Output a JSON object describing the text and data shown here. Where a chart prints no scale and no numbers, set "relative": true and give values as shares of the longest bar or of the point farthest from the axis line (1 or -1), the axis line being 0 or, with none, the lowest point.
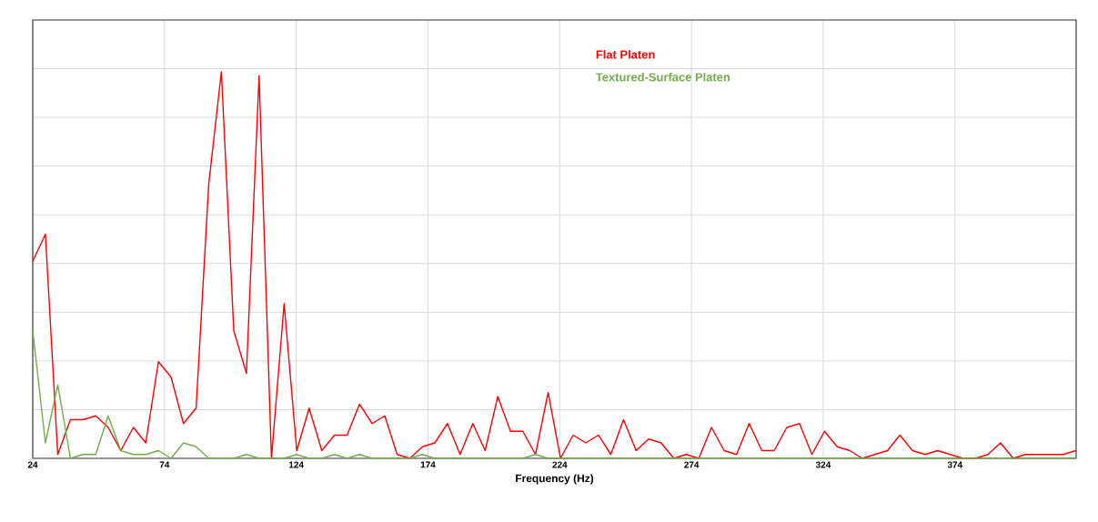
{
  "chart_data": {
    "type": "line",
    "xlabel": "Frequency (Hz)",
    "relative": true,
    "grid": true,
    "legend": "top right",
    "tick_labels": "x",
    "marker": "none",
    "line_style": "solid",
    "xlim": [
      24,
      420
    ],
    "xticks": [
      24,
      74,
      124,
      174,
      224,
      274,
      324,
      374
    ],
    "x": [
      24.0,
      28.8,
      33.5,
      38.3,
      43.1,
      47.9,
      52.6,
      57.4,
      62.2,
      66.9,
      71.7,
      76.5,
      81.2,
      86.0,
      90.8,
      95.6,
      100.3,
      105.1,
      109.9,
      114.6,
      119.4,
      124.2,
      128.9,
      133.7,
      138.5,
      143.3,
      148.0,
      152.8,
      157.6,
      162.3,
      167.1,
      171.9,
      176.6,
      181.4,
      186.2,
      191.0,
      195.7,
      200.5,
      205.3,
      210.0,
      214.8,
      219.6,
      224.3,
      229.1,
      233.9,
      238.7,
      243.4,
      248.2,
      253.0,
      257.7,
      262.5,
      267.3,
      272.0,
      276.8,
      281.6,
      286.4,
      291.1,
      295.9,
      300.7,
      305.4,
      310.2,
      315.0,
      319.7,
      324.5,
      329.3,
      334.1,
      338.8,
      343.6,
      348.4,
      353.1,
      357.9,
      362.7,
      367.4,
      372.2,
      377.0,
      381.8,
      386.5,
      391.3,
      396.1,
      400.8,
      405.6,
      410.4,
      415.1,
      419.9
    ],
    "series": [
      {
        "name": "Flat Platen",
        "color": "#ff0000",
        "values": [
          0.51,
          0.58,
          0.01,
          0.1,
          0.1,
          0.11,
          0.08,
          0.02,
          0.08,
          0.04,
          0.25,
          0.21,
          0.09,
          0.13,
          0.71,
          1.0,
          0.33,
          0.22,
          0.99,
          0.0,
          0.4,
          0.02,
          0.13,
          0.02,
          0.06,
          0.06,
          0.14,
          0.09,
          0.11,
          0.01,
          0.0,
          0.03,
          0.04,
          0.09,
          0.01,
          0.09,
          0.02,
          0.16,
          0.07,
          0.07,
          0.01,
          0.17,
          0.0,
          0.06,
          0.04,
          0.06,
          0.01,
          0.1,
          0.02,
          0.05,
          0.04,
          0.0,
          0.01,
          0.0,
          0.08,
          0.02,
          0.01,
          0.09,
          0.02,
          0.02,
          0.08,
          0.09,
          0.01,
          0.07,
          0.03,
          0.02,
          0.0,
          0.01,
          0.02,
          0.06,
          0.02,
          0.01,
          0.02,
          0.01,
          0.0,
          0.0,
          0.01,
          0.04,
          0.0,
          0.01,
          0.01,
          0.01,
          0.01,
          0.02
        ]
      },
      {
        "name": "Textured-Surface Platen",
        "color": "#70ad47",
        "values": [
          0.33,
          0.04,
          0.19,
          0.0,
          0.01,
          0.01,
          0.11,
          0.02,
          0.01,
          0.01,
          0.02,
          0.0,
          0.04,
          0.03,
          0.0,
          0.0,
          0.0,
          0.01,
          0.0,
          0.0,
          0.0,
          0.01,
          0.0,
          0.0,
          0.01,
          0.0,
          0.01,
          0.0,
          0.0,
          0.0,
          0.0,
          0.01,
          0.0,
          0.0,
          0.0,
          0.0,
          0.0,
          0.0,
          0.0,
          0.0,
          0.01,
          0.0,
          0.0,
          0.0,
          0.0,
          0.0,
          0.0,
          0.0,
          0.0,
          0.0,
          0.0,
          0.0,
          0.0,
          0.0,
          0.0,
          0.0,
          0.0,
          0.0,
          0.0,
          0.0,
          0.0,
          0.0,
          0.0,
          0.0,
          0.0,
          0.0,
          0.0,
          0.0,
          0.0,
          0.0,
          0.0,
          0.0,
          0.0,
          0.0,
          0.0,
          0.0,
          0.0,
          0.0,
          0.0,
          0.0,
          0.0,
          0.0,
          0.0,
          0.0
        ]
      }
    ]
  }
}
